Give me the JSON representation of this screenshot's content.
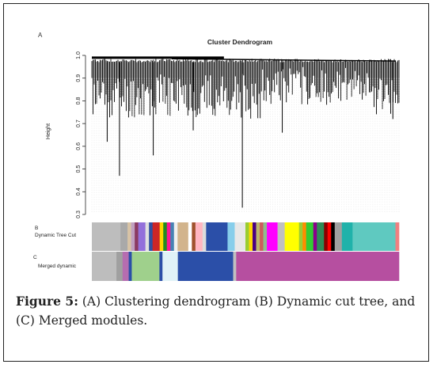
{
  "figure": {
    "panel_a_label": "A",
    "panel_b_label": "B",
    "panel_c_label": "C",
    "caption_label": "Figure 5:",
    "caption_text": " (A) Clustering dendrogram (B) Dynamic cut tree, and (C) Merged modules."
  },
  "chart_data": [
    {
      "type": "dendrogram",
      "title": "Cluster Dendrogram",
      "ylabel": "Height",
      "xlabel": "",
      "ylim": [
        0.3,
        1.0
      ],
      "yticks": [
        "0.3",
        "0.4",
        "0.5",
        "0.6",
        "0.7",
        "0.8",
        "0.9",
        "1.0"
      ],
      "grid": false,
      "legend": "none",
      "notable_branch_minima": [
        {
          "position": 0.05,
          "height": 0.62
        },
        {
          "position": 0.09,
          "height": 0.47
        },
        {
          "position": 0.2,
          "height": 0.56
        },
        {
          "position": 0.33,
          "height": 0.67
        },
        {
          "position": 0.49,
          "height": 0.33
        },
        {
          "position": 0.62,
          "height": 0.66
        },
        {
          "position": 0.98,
          "height": 0.72
        }
      ]
    },
    {
      "type": "color-bar",
      "label": "Dynamic Tree Cut",
      "segments": [
        {
          "color": "#bdbdbd",
          "width": 8
        },
        {
          "color": "#a9a9a9",
          "width": 2
        },
        {
          "color": "#d8c3a5",
          "width": 1
        },
        {
          "color": "#c0a0c0",
          "width": 1
        },
        {
          "color": "#8b3a62",
          "width": 1
        },
        {
          "color": "#9370db",
          "width": 2
        },
        {
          "color": "#e0e0e0",
          "width": 1
        },
        {
          "color": "#2f4fa0",
          "width": 1
        },
        {
          "color": "#cd2626",
          "width": 2
        },
        {
          "color": "#ffd700",
          "width": 1
        },
        {
          "color": "#228b22",
          "width": 1
        },
        {
          "color": "#ff1493",
          "width": 1
        },
        {
          "color": "#4682b4",
          "width": 1
        },
        {
          "color": "#f0f0f0",
          "width": 1
        },
        {
          "color": "#d2b48c",
          "width": 3
        },
        {
          "color": "#ffffff",
          "width": 1
        },
        {
          "color": "#a0522d",
          "width": 1
        },
        {
          "color": "#ffb6c1",
          "width": 2
        },
        {
          "color": "#dcdcdc",
          "width": 1
        },
        {
          "color": "#2b4fa8",
          "width": 6
        },
        {
          "color": "#87ceeb",
          "width": 2
        },
        {
          "color": "#e8e8e8",
          "width": 3
        },
        {
          "color": "#9acd32",
          "width": 1
        },
        {
          "color": "#ffd700",
          "width": 1
        },
        {
          "color": "#4b0082",
          "width": 1
        },
        {
          "color": "#bdb76b",
          "width": 1
        },
        {
          "color": "#cd5c5c",
          "width": 1
        },
        {
          "color": "#8fbc8f",
          "width": 1
        },
        {
          "color": "#ff00ff",
          "width": 3
        },
        {
          "color": "#c0c0c0",
          "width": 2
        },
        {
          "color": "#ffff00",
          "width": 4
        },
        {
          "color": "#9acd32",
          "width": 1
        },
        {
          "color": "#ff8c00",
          "width": 1
        },
        {
          "color": "#32cd32",
          "width": 2
        },
        {
          "color": "#8b008b",
          "width": 1
        },
        {
          "color": "#2e8b57",
          "width": 2
        },
        {
          "color": "#8b0000",
          "width": 1
        },
        {
          "color": "#ff0000",
          "width": 1
        },
        {
          "color": "#000000",
          "width": 1
        },
        {
          "color": "#a0a0a0",
          "width": 2
        },
        {
          "color": "#20b2aa",
          "width": 3
        },
        {
          "color": "#5fc9c0",
          "width": 12
        },
        {
          "color": "#f08080",
          "width": 1
        }
      ]
    },
    {
      "type": "color-bar",
      "label": "Merged dynamic",
      "segments": [
        {
          "color": "#bdbdbd",
          "width": 8
        },
        {
          "color": "#a0a0a0",
          "width": 2
        },
        {
          "color": "#b66db0",
          "width": 2
        },
        {
          "color": "#2b4fa8",
          "width": 1
        },
        {
          "color": "#9fd08c",
          "width": 9
        },
        {
          "color": "#2b4fa8",
          "width": 1
        },
        {
          "color": "#e0f2f7",
          "width": 5
        },
        {
          "color": "#2b4fa8",
          "width": 18
        },
        {
          "color": "#c0c0c0",
          "width": 1
        },
        {
          "color": "#b64fa0",
          "width": 53
        }
      ]
    }
  ]
}
